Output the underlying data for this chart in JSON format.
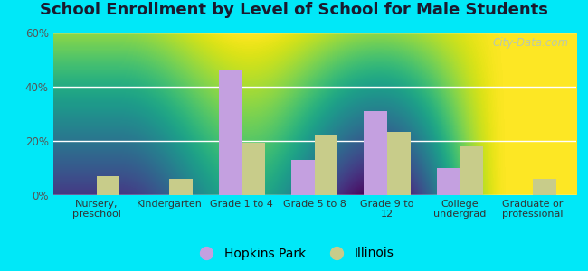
{
  "title": "School Enrollment by Level of School for Male Students",
  "categories": [
    "Nursery,\npreschool",
    "Kindergarten",
    "Grade 1 to 4",
    "Grade 5 to 8",
    "Grade 9 to\n12",
    "College\nundergrad",
    "Graduate or\nprofessional"
  ],
  "hopkins_park": [
    0.0,
    0.0,
    46.0,
    13.0,
    31.0,
    10.0,
    0.0
  ],
  "illinois": [
    7.0,
    6.0,
    19.5,
    22.5,
    23.5,
    18.0,
    6.0
  ],
  "hopkins_color": "#c4a0e0",
  "illinois_color": "#c8cc8a",
  "background_outer": "#00e8f8",
  "ylim": [
    0,
    60
  ],
  "yticks": [
    0,
    20,
    40,
    60
  ],
  "ytick_labels": [
    "0%",
    "20%",
    "40%",
    "60%"
  ],
  "title_fontsize": 13,
  "legend_labels": [
    "Hopkins Park",
    "Illinois"
  ],
  "watermark": "City-Data.com",
  "bar_width": 0.32
}
